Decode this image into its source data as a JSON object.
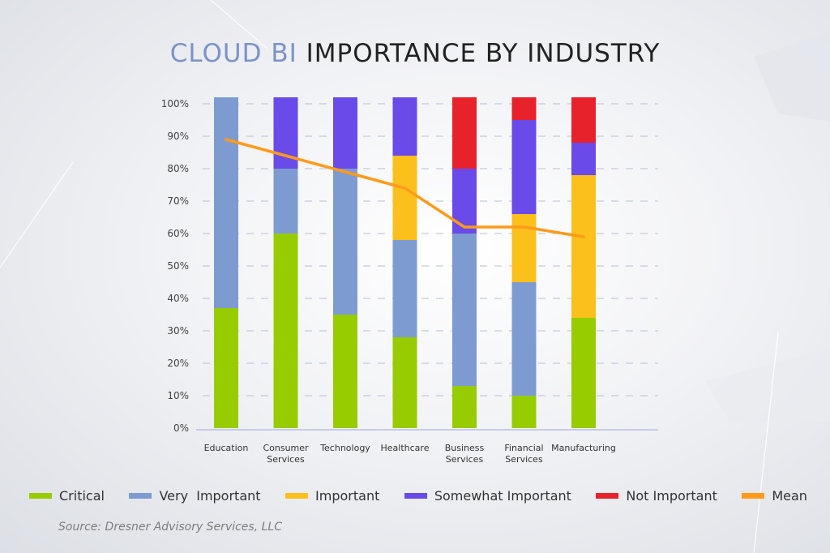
{
  "title": {
    "accent": "CLOUD BI",
    "rest": " IMPORTANCE BY INDUSTRY"
  },
  "source": "Source: Dresner Advisory Services, LLC",
  "chart_data": {
    "type": "bar",
    "stacked": true,
    "categories": [
      [
        "Education"
      ],
      [
        "Consumer",
        "Services"
      ],
      [
        "Technology"
      ],
      [
        "Healthcare"
      ],
      [
        "Business",
        "Services"
      ],
      [
        "Financial",
        "Services"
      ],
      [
        "Manufacturing"
      ]
    ],
    "series": [
      {
        "name": "Critical",
        "color": "#96cc00",
        "values": [
          37,
          60,
          35,
          28,
          13,
          10,
          34
        ]
      },
      {
        "name": "Very  Important",
        "color": "#7e9bd1",
        "values": [
          65,
          20,
          45,
          30,
          47,
          35,
          0
        ]
      },
      {
        "name": "Important",
        "color": "#fcc01c",
        "values": [
          0,
          0,
          0,
          26,
          0,
          21,
          44
        ]
      },
      {
        "name": "Somewhat Important",
        "color": "#6a4ae8",
        "values": [
          0,
          22,
          22,
          18,
          20,
          29,
          10
        ]
      },
      {
        "name": "Not Important",
        "color": "#e8222b",
        "values": [
          0,
          0,
          0,
          0,
          22,
          7,
          14
        ]
      }
    ],
    "line": {
      "name": "Mean",
      "color": "#ff9a1a",
      "values": [
        89,
        84,
        79,
        74,
        62,
        62,
        59
      ]
    },
    "y_ticks": [
      "0%",
      "10%",
      "20%",
      "30%",
      "40%",
      "50%",
      "60%",
      "70%",
      "80%",
      "90%",
      "100%"
    ],
    "ylim": [
      0,
      100
    ],
    "grid": true,
    "legend_position": "bottom"
  }
}
